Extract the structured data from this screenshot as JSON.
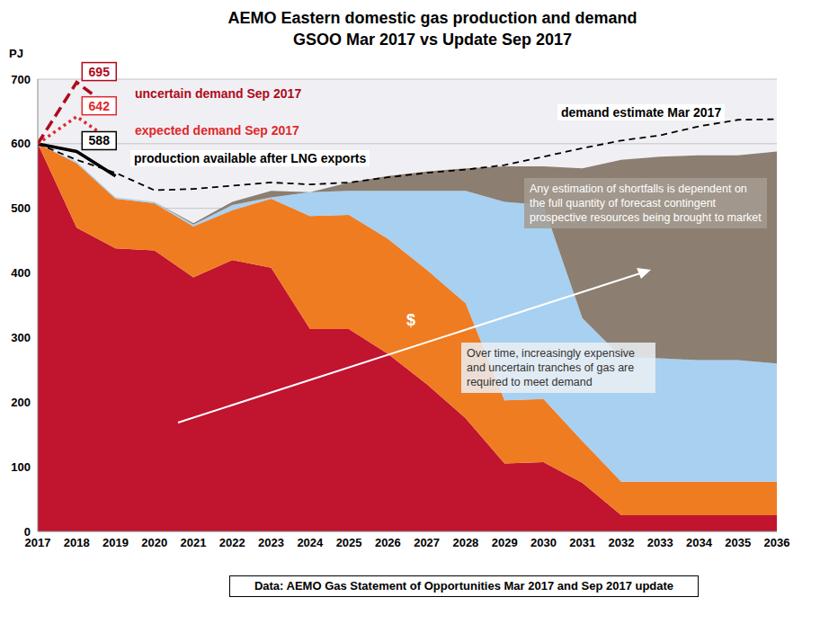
{
  "chart_data": {
    "type": "area",
    "title": "AEMO Eastern domestic gas production and demand",
    "subtitle": "GSOO Mar 2017 vs Update Sep 2017",
    "y_label": "PJ",
    "footer": "Data: AEMO Gas Statement of Opportunities Mar 2017 and Sep 2017 update",
    "x": [
      2017,
      2018,
      2019,
      2020,
      2021,
      2022,
      2023,
      2024,
      2025,
      2026,
      2027,
      2028,
      2029,
      2030,
      2031,
      2032,
      2033,
      2034,
      2035,
      2036
    ],
    "xlim": [
      2017,
      2036
    ],
    "xticks": [
      2017,
      2018,
      2019,
      2020,
      2021,
      2022,
      2023,
      2024,
      2025,
      2026,
      2027,
      2028,
      2029,
      2030,
      2031,
      2032,
      2033,
      2034,
      2035,
      2036
    ],
    "ylim": [
      0,
      700
    ],
    "yticks": [
      0,
      100,
      200,
      300,
      400,
      500,
      600,
      700
    ],
    "grid": true,
    "stacked": true,
    "series": [
      {
        "type": "area",
        "color": "#c0142f",
        "values": [
          600,
          470,
          438,
          435,
          393,
          420,
          408,
          313,
          313,
          275,
          228,
          175,
          105,
          107,
          75,
          25,
          25,
          25,
          25,
          25
        ]
      },
      {
        "type": "area",
        "color": "#f07c22",
        "values": [
          0,
          100,
          77,
          73,
          79,
          77,
          107,
          175,
          177,
          178,
          177,
          178,
          98,
          98,
          65,
          52,
          52,
          52,
          52,
          52
        ]
      },
      {
        "type": "area",
        "color": "#a8d0f0",
        "values": [
          0,
          2,
          2,
          2,
          3,
          8,
          2,
          37,
          37,
          74,
          122,
          174,
          307,
          300,
          190,
          193,
          191,
          188,
          188,
          183
        ]
      },
      {
        "type": "area",
        "color": "#8c7e70",
        "values": [
          0,
          0,
          0,
          0,
          2,
          5,
          10,
          0,
          13,
          23,
          30,
          35,
          55,
          60,
          232,
          305,
          312,
          317,
          317,
          328
        ]
      },
      {
        "type": "line",
        "name": "demand estimate Mar 2017",
        "color": "#000000",
        "line_style": "dashed",
        "values": [
          600,
          575,
          555,
          528,
          530,
          535,
          540,
          537,
          540,
          548,
          555,
          560,
          567,
          580,
          593,
          605,
          613,
          627,
          637,
          638
        ]
      },
      {
        "type": "line",
        "name": "production available after LNG exports",
        "color": "#000000",
        "line_style": "solid",
        "values": [
          600,
          588,
          550,
          null,
          null,
          null,
          null,
          null,
          null,
          null,
          null,
          null,
          null,
          null,
          null,
          null,
          null,
          null,
          null,
          null
        ],
        "value_labels": [
          null,
          "588",
          null,
          null,
          null,
          null,
          null,
          null,
          null,
          null,
          null,
          null,
          null,
          null,
          null,
          null,
          null,
          null,
          null,
          null
        ]
      },
      {
        "type": "line",
        "name": "expected demand Sep 2017",
        "color": "#e0282a",
        "line_style": "dotted",
        "values": [
          600,
          642,
          600,
          null,
          null,
          null,
          null,
          null,
          null,
          null,
          null,
          null,
          null,
          null,
          null,
          null,
          null,
          null,
          null,
          null
        ],
        "value_labels": [
          null,
          "642",
          null,
          null,
          null,
          null,
          null,
          null,
          null,
          null,
          null,
          null,
          null,
          null,
          null,
          null,
          null,
          null,
          null,
          null
        ]
      },
      {
        "type": "line",
        "name": "uncertain demand Sep 2017",
        "color": "#b00a1a",
        "line_style": "dashed",
        "values": [
          600,
          695,
          650,
          null,
          null,
          null,
          null,
          null,
          null,
          null,
          null,
          null,
          null,
          null,
          null,
          null,
          null,
          null,
          null,
          null
        ],
        "value_labels": [
          null,
          "695",
          null,
          null,
          null,
          null,
          null,
          null,
          null,
          null,
          null,
          null,
          null,
          null,
          null,
          null,
          null,
          null,
          null,
          null
        ]
      }
    ],
    "annotations": [
      {
        "text": "Any estimation of shortfalls is dependent on the full quantity of forecast contingent prospective resources being brought to market"
      },
      {
        "text": "$"
      },
      {
        "text": "Over time, increasingly expensive and uncertain tranches of gas are required to meet demand"
      }
    ]
  }
}
